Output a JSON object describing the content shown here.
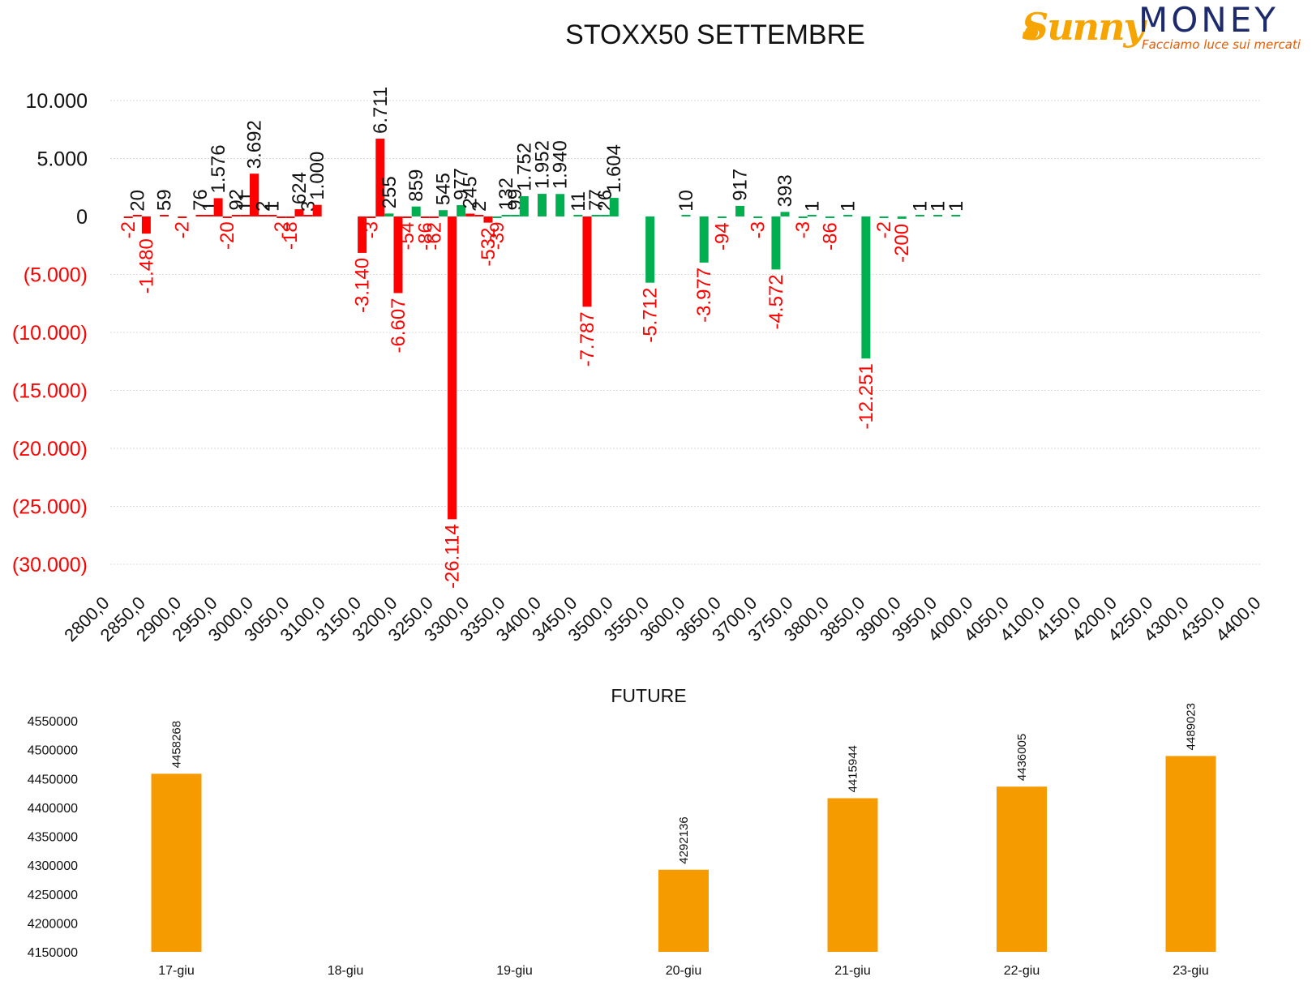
{
  "logo": {
    "word1": "Sunny",
    "word2": "MONEY",
    "tagline": "Facciamo luce sui mercati",
    "colors": {
      "sunny": "#f5a400",
      "money": "#1d2a6b",
      "tagline": "#e65a00"
    }
  },
  "colors": {
    "positive": "#00b050",
    "negative": "#ff0000",
    "negative_axis": "#ff0000",
    "future_bar": "#f59b00",
    "grid": "#d9d9d9"
  },
  "chart_data": [
    {
      "type": "bar",
      "title": "STOXX50 SETTEMBRE",
      "x_categories": [
        "2800,0",
        "2850,0",
        "2900,0",
        "2950,0",
        "3000,0",
        "3050,0",
        "3100,0",
        "3150,0",
        "3200,0",
        "3250,0",
        "3300,0",
        "3350,0",
        "3400,0",
        "3450,0",
        "3500,0",
        "3550,0",
        "3600,0",
        "3650,0",
        "3700,0",
        "3750,0",
        "3800,0",
        "3850,0",
        "3900,0",
        "3950,0",
        "4000,0",
        "4050,0",
        "4100,0",
        "4150,0",
        "4200,0",
        "4250,0",
        "4300,0",
        "4350,0",
        "4400,0"
      ],
      "y_ticks": [
        {
          "value": 10000,
          "label": "10.000"
        },
        {
          "value": 5000,
          "label": "5.000"
        },
        {
          "value": 0,
          "label": "0"
        },
        {
          "value": -5000,
          "label": "(5.000)"
        },
        {
          "value": -10000,
          "label": "(10.000)"
        },
        {
          "value": -15000,
          "label": "(15.000)"
        },
        {
          "value": -20000,
          "label": "(20.000)"
        },
        {
          "value": -25000,
          "label": "(25.000)"
        },
        {
          "value": -30000,
          "label": "(30.000)"
        }
      ],
      "ylim": [
        -30000,
        10000
      ],
      "grid": true,
      "bars": [
        {
          "strike": 2825,
          "value": -2,
          "label": "-2",
          "color": "red"
        },
        {
          "strike": 2837.5,
          "value": 20,
          "label": "20",
          "color": "red"
        },
        {
          "strike": 2850,
          "value": -1480,
          "label": "-1.480",
          "color": "red"
        },
        {
          "strike": 2875,
          "value": 59,
          "label": "59",
          "color": "red"
        },
        {
          "strike": 2900,
          "value": -2,
          "label": "-2",
          "color": "red"
        },
        {
          "strike": 2925,
          "value": 76,
          "label": "76",
          "color": "red"
        },
        {
          "strike": 2937.5,
          "value": 1,
          "label": "1",
          "color": "red"
        },
        {
          "strike": 2950,
          "value": 1576,
          "label": "1.576",
          "color": "red"
        },
        {
          "strike": 2962.5,
          "value": -20,
          "label": "-20",
          "color": "red"
        },
        {
          "strike": 2975,
          "value": 92,
          "label": "92",
          "color": "red"
        },
        {
          "strike": 2987.5,
          "value": 11,
          "label": "11",
          "color": "red"
        },
        {
          "strike": 3000,
          "value": 3692,
          "label": "3.692",
          "color": "red"
        },
        {
          "strike": 3012.5,
          "value": 2,
          "label": "2",
          "color": "red"
        },
        {
          "strike": 3025,
          "value": 1,
          "label": "1",
          "color": "red"
        },
        {
          "strike": 3037.5,
          "value": -2,
          "label": "-2",
          "color": "red"
        },
        {
          "strike": 3050,
          "value": -18,
          "label": "-18",
          "color": "red"
        },
        {
          "strike": 3062.5,
          "value": 624,
          "label": "624",
          "color": "red"
        },
        {
          "strike": 3075,
          "value": 3,
          "label": "3",
          "color": "red"
        },
        {
          "strike": 3087.5,
          "value": 1000,
          "label": "1.000",
          "color": "red"
        },
        {
          "strike": 3150,
          "value": -3140,
          "label": "-3.140",
          "color": "red"
        },
        {
          "strike": 3162.5,
          "value": -3,
          "label": "-3",
          "color": "red"
        },
        {
          "strike": 3175,
          "value": 6711,
          "label": "6.711",
          "color": "red"
        },
        {
          "strike": 3187.5,
          "value": 255,
          "label": "255",
          "color": "green"
        },
        {
          "strike": 3200,
          "value": -6607,
          "label": "-6.607",
          "color": "red"
        },
        {
          "strike": 3212.5,
          "value": -54,
          "label": "-54",
          "color": "red"
        },
        {
          "strike": 3225,
          "value": 859,
          "label": "859",
          "color": "green"
        },
        {
          "strike": 3237.5,
          "value": -86,
          "label": "-86",
          "color": "red"
        },
        {
          "strike": 3250,
          "value": -62,
          "label": "-62",
          "color": "red"
        },
        {
          "strike": 3262.5,
          "value": 545,
          "label": "545",
          "color": "green"
        },
        {
          "strike": 3275,
          "value": -26114,
          "label": "-26.114",
          "color": "red"
        },
        {
          "strike": 3287.5,
          "value": 977,
          "label": "977",
          "color": "green"
        },
        {
          "strike": 3300,
          "value": 245,
          "label": "245",
          "color": "red"
        },
        {
          "strike": 3312.5,
          "value": 2,
          "label": "2",
          "color": "red"
        },
        {
          "strike": 3325,
          "value": -532,
          "label": "-532",
          "color": "red"
        },
        {
          "strike": 3337.5,
          "value": -39,
          "label": "-39",
          "color": "green"
        },
        {
          "strike": 3350,
          "value": 132,
          "label": "132",
          "color": "green"
        },
        {
          "strike": 3362.5,
          "value": 99,
          "label": "99",
          "color": "green"
        },
        {
          "strike": 3375,
          "value": 1752,
          "label": "1.752",
          "color": "green"
        },
        {
          "strike": 3400,
          "value": 1952,
          "label": "1.952",
          "color": "green"
        },
        {
          "strike": 3425,
          "value": 1940,
          "label": "1.940",
          "color": "green"
        },
        {
          "strike": 3450,
          "value": 11,
          "label": "11",
          "color": "green"
        },
        {
          "strike": 3462.5,
          "value": -7787,
          "label": "-7.787",
          "color": "red"
        },
        {
          "strike": 3475,
          "value": 77,
          "label": "77",
          "color": "green"
        },
        {
          "strike": 3487.5,
          "value": 26,
          "label": "26",
          "color": "green"
        },
        {
          "strike": 3500,
          "value": 1604,
          "label": "1.604",
          "color": "green"
        },
        {
          "strike": 3550,
          "value": -5712,
          "label": "-5.712",
          "color": "green"
        },
        {
          "strike": 3600,
          "value": 10,
          "label": "10",
          "color": "green"
        },
        {
          "strike": 3625,
          "value": -3977,
          "label": "-3.977",
          "color": "green"
        },
        {
          "strike": 3650,
          "value": -94,
          "label": "-94",
          "color": "green"
        },
        {
          "strike": 3675,
          "value": 917,
          "label": "917",
          "color": "green"
        },
        {
          "strike": 3700,
          "value": -3,
          "label": "-3",
          "color": "green"
        },
        {
          "strike": 3725,
          "value": -4572,
          "label": "-4.572",
          "color": "green"
        },
        {
          "strike": 3737.5,
          "value": 393,
          "label": "393",
          "color": "green"
        },
        {
          "strike": 3762.5,
          "value": -3,
          "label": "-3",
          "color": "green"
        },
        {
          "strike": 3775,
          "value": 1,
          "label": "1",
          "color": "green"
        },
        {
          "strike": 3800,
          "value": -86,
          "label": "-86",
          "color": "green"
        },
        {
          "strike": 3825,
          "value": 1,
          "label": "1",
          "color": "green"
        },
        {
          "strike": 3850,
          "value": -12251,
          "label": "-12.251",
          "color": "green"
        },
        {
          "strike": 3875,
          "value": -2,
          "label": "-2",
          "color": "green"
        },
        {
          "strike": 3900,
          "value": -200,
          "label": "-200",
          "color": "green"
        },
        {
          "strike": 3925,
          "value": 1,
          "label": "1",
          "color": "green"
        },
        {
          "strike": 3950,
          "value": 1,
          "label": "1",
          "color": "green"
        },
        {
          "strike": 3975,
          "value": 1,
          "label": "1",
          "color": "green"
        }
      ]
    },
    {
      "type": "bar",
      "title": "FUTURE",
      "categories": [
        "17-giu",
        "18-giu",
        "19-giu",
        "20-giu",
        "21-giu",
        "22-giu",
        "23-giu"
      ],
      "values": [
        4458268,
        null,
        null,
        4292136,
        4415944,
        4436005,
        4489023
      ],
      "value_labels": [
        "4458268",
        "",
        "",
        "4292136",
        "4415944",
        "4436005",
        "4489023"
      ],
      "y_ticks": [
        "4550000",
        "4500000",
        "4450000",
        "4400000",
        "4350000",
        "4300000",
        "4250000",
        "4200000",
        "4150000"
      ],
      "ylim": [
        4150000,
        4550000
      ],
      "grid": false
    }
  ]
}
